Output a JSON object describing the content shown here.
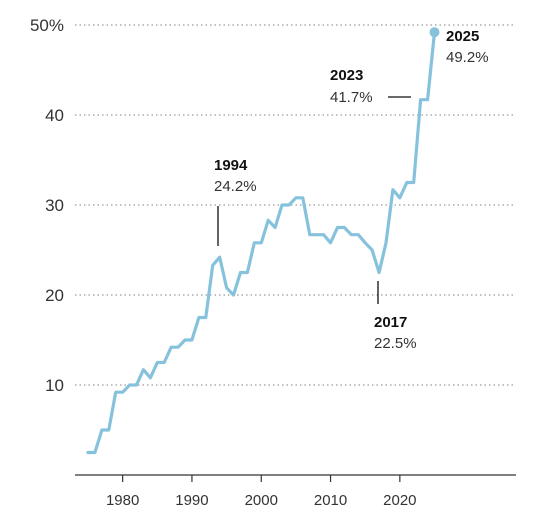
{
  "chart_data": {
    "type": "line",
    "title": "",
    "xlabel": "",
    "ylabel": "",
    "xlim": [
      1973,
      2027
    ],
    "ylim": [
      0,
      50
    ],
    "grid": true,
    "line_color": "#86c2dc",
    "y_ticks": [
      {
        "value": 10,
        "label": "10"
      },
      {
        "value": 20,
        "label": "20"
      },
      {
        "value": 30,
        "label": "30"
      },
      {
        "value": 40,
        "label": "40"
      },
      {
        "value": 50,
        "label": "50%"
      }
    ],
    "x_ticks": [
      {
        "value": 1980,
        "label": "1980"
      },
      {
        "value": 1990,
        "label": "1990"
      },
      {
        "value": 2000,
        "label": "2000"
      },
      {
        "value": 2010,
        "label": "2010"
      },
      {
        "value": 2020,
        "label": "2020"
      }
    ],
    "series": [
      {
        "x": [
          1975,
          1976,
          1977,
          1978,
          1979,
          1980,
          1981,
          1982,
          1983,
          1984,
          1985,
          1986,
          1987,
          1988,
          1989,
          1990,
          1991,
          1992,
          1993,
          1994,
          1995,
          1996,
          1997,
          1998,
          1999,
          2000,
          2001,
          2002,
          2003,
          2004,
          2005,
          2006,
          2007,
          2008,
          2009,
          2010,
          2011,
          2012,
          2013,
          2014,
          2015,
          2016,
          2017,
          2018,
          2019,
          2020,
          2021,
          2022,
          2023,
          2024,
          2025
        ],
        "y": [
          2.5,
          2.5,
          5.0,
          5.0,
          9.2,
          9.2,
          10.0,
          10.0,
          11.7,
          10.8,
          12.5,
          12.5,
          14.2,
          14.2,
          15.0,
          15.0,
          17.5,
          17.5,
          23.3,
          24.2,
          20.8,
          20.0,
          22.5,
          22.5,
          25.8,
          25.8,
          28.3,
          27.5,
          30.0,
          30.0,
          30.8,
          30.8,
          26.7,
          26.7,
          26.7,
          25.8,
          27.5,
          27.5,
          26.7,
          26.7,
          25.8,
          25.0,
          22.5,
          25.8,
          31.7,
          30.8,
          32.5,
          32.5,
          41.7,
          41.7,
          49.2
        ]
      }
    ],
    "annotations": [
      {
        "year": "1994",
        "value": "24.2%"
      },
      {
        "year": "2017",
        "value": "22.5%"
      },
      {
        "year": "2023",
        "value": "41.7%"
      },
      {
        "year": "2025",
        "value": "49.2%"
      }
    ]
  }
}
